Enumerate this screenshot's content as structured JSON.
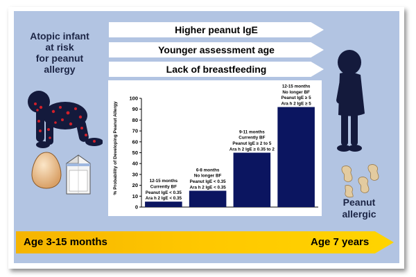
{
  "factors": [
    "Higher peanut IgE",
    "Younger assessment age",
    "Lack of breastfeeding"
  ],
  "left_label": [
    "Atopic infant",
    "at risk",
    "for peanut",
    "allergy"
  ],
  "right_label": [
    "Peanut",
    "allergic"
  ],
  "age_start": "Age 3-15 months",
  "age_end": "Age 7 years",
  "colors": {
    "bars": "#0b1560",
    "panel": "#b2c4e2",
    "arrow": "#ffc800"
  },
  "icons": [
    "crawling-infant-icon",
    "egg-icon",
    "milk-carton-icon",
    "standing-child-icon",
    "peanuts-icon"
  ],
  "chart_data": {
    "type": "bar",
    "ylabel": "% Probability of Developing Peanut Allergy",
    "ylim": [
      0,
      100
    ],
    "yticks": [
      0,
      10,
      20,
      30,
      40,
      50,
      60,
      70,
      80,
      90,
      100
    ],
    "values": [
      5,
      15,
      50,
      92
    ],
    "annotations": [
      [
        "12-15 months",
        "Currently BF",
        "Peanut IgE < 0.35",
        "Ara h 2 IgE < 0.35"
      ],
      [
        "6-8 months",
        "No longer BF",
        "Peanut IgE < 0.35",
        "Ara h 2 IgE < 0.35"
      ],
      [
        "9-11 months",
        "Currently BF",
        "Peanut IgE ≥ 2 to 5",
        "Ara h 2 IgE ≥ 0.35 to 2"
      ],
      [
        "12-15 months",
        "No longer BF",
        "Peanut IgE ≥ 5",
        "Ara h 2 IgE ≥ 5"
      ]
    ]
  }
}
